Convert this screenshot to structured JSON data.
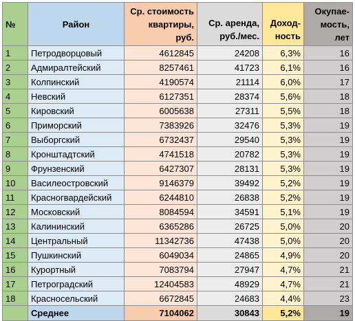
{
  "header": {
    "num": "№",
    "district": "Район",
    "price": [
      "Ср. стоимость",
      "квартиры,",
      "руб."
    ],
    "rent": [
      "Ср. аренда,",
      "руб./мес."
    ],
    "yield": [
      "Доход-",
      "ность"
    ],
    "payback": [
      "Окупае-",
      "мость,",
      "лет"
    ]
  },
  "rows": [
    {
      "num": "1",
      "district": "Петродворцовый",
      "price": "4612845",
      "rent": "24208",
      "yield": "6,3%",
      "payback": "16"
    },
    {
      "num": "2",
      "district": "Адмиралтейский",
      "price": "8257461",
      "rent": "41723",
      "yield": "6,1%",
      "payback": "16"
    },
    {
      "num": "3",
      "district": "Колпинский",
      "price": "4190574",
      "rent": "21114",
      "yield": "6,0%",
      "payback": "17"
    },
    {
      "num": "4",
      "district": "Невский",
      "price": "6127351",
      "rent": "28374",
      "yield": "5,6%",
      "payback": "18"
    },
    {
      "num": "5",
      "district": "Кировский",
      "price": "6005638",
      "rent": "27311",
      "yield": "5,5%",
      "payback": "18"
    },
    {
      "num": "6",
      "district": "Приморский",
      "price": "7383926",
      "rent": "32476",
      "yield": "5,3%",
      "payback": "19"
    },
    {
      "num": "7",
      "district": "Выборгский",
      "price": "6732437",
      "rent": "29540",
      "yield": "5,3%",
      "payback": "19"
    },
    {
      "num": "8",
      "district": "Кронштадтский",
      "price": "4741518",
      "rent": "20782",
      "yield": "5,3%",
      "payback": "19"
    },
    {
      "num": "9",
      "district": "Фрунзенский",
      "price": "6427307",
      "rent": "28131",
      "yield": "5,3%",
      "payback": "19"
    },
    {
      "num": "10",
      "district": "Василеостровский",
      "price": "9146379",
      "rent": "39492",
      "yield": "5,2%",
      "payback": "19"
    },
    {
      "num": "11",
      "district": "Красногвардейский",
      "price": "6244810",
      "rent": "26838",
      "yield": "5,2%",
      "payback": "19"
    },
    {
      "num": "12",
      "district": "Московский",
      "price": "8084594",
      "rent": "34591",
      "yield": "5,1%",
      "payback": "19"
    },
    {
      "num": "13",
      "district": "Калининский",
      "price": "6365286",
      "rent": "26725",
      "yield": "5,0%",
      "payback": "20"
    },
    {
      "num": "14",
      "district": "Центральный",
      "price": "11342736",
      "rent": "47438",
      "yield": "5,0%",
      "payback": "20"
    },
    {
      "num": "15",
      "district": "Пушкинский",
      "price": "6049034",
      "rent": "24865",
      "yield": "4,9%",
      "payback": "20"
    },
    {
      "num": "16",
      "district": "Курортный",
      "price": "7083794",
      "rent": "27947",
      "yield": "4,7%",
      "payback": "21"
    },
    {
      "num": "17",
      "district": "Петроградский",
      "price": "12404583",
      "rent": "48929",
      "yield": "4,7%",
      "payback": "21"
    },
    {
      "num": "18",
      "district": "Красносельский",
      "price": "6672845",
      "rent": "24683",
      "yield": "4,4%",
      "payback": "23"
    }
  ],
  "average": {
    "label": "Среднее",
    "price": "7104062",
    "rent": "30843",
    "yield": "5,2%",
    "payback": "19"
  }
}
